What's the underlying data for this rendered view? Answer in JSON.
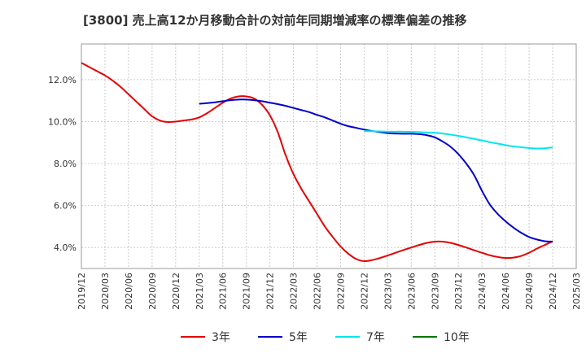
{
  "title": "[3800]  売上高12か月移動合計の対前年同期増減率の標準偏差の推移",
  "chart_data": {
    "type": "line",
    "title": "[3800]  売上高12か月移動合計の対前年同期増減率の標準偏差の推移",
    "xlabel": "",
    "ylabel": "",
    "x_ticks": [
      "2019/12",
      "2020/03",
      "2020/06",
      "2020/09",
      "2020/12",
      "2021/03",
      "2021/06",
      "2021/09",
      "2021/12",
      "2022/03",
      "2022/06",
      "2022/09",
      "2022/12",
      "2023/03",
      "2023/06",
      "2023/09",
      "2023/12",
      "2024/03",
      "2024/06",
      "2024/09",
      "2024/12",
      "2025/03"
    ],
    "y_ticks": [
      "4.0%",
      "6.0%",
      "8.0%",
      "10.0%",
      "12.0%"
    ],
    "y_tick_values": [
      4,
      6,
      8,
      10,
      12
    ],
    "ylim": [
      3,
      13.7
    ],
    "grid": true,
    "legend_position": "bottom",
    "series": [
      {
        "name": "3年",
        "color": "#e60000",
        "points": [
          [
            "2019/12",
            12.8
          ],
          [
            "2020/01",
            12.6
          ],
          [
            "2020/02",
            12.4
          ],
          [
            "2020/03",
            12.2
          ],
          [
            "2020/04",
            11.95
          ],
          [
            "2020/05",
            11.65
          ],
          [
            "2020/06",
            11.3
          ],
          [
            "2020/07",
            10.95
          ],
          [
            "2020/08",
            10.6
          ],
          [
            "2020/09",
            10.25
          ],
          [
            "2020/10",
            10.05
          ],
          [
            "2020/11",
            9.98
          ],
          [
            "2020/12",
            10.0
          ],
          [
            "2021/01",
            10.05
          ],
          [
            "2021/02",
            10.1
          ],
          [
            "2021/03",
            10.2
          ],
          [
            "2021/04",
            10.4
          ],
          [
            "2021/05",
            10.65
          ],
          [
            "2021/06",
            10.9
          ],
          [
            "2021/07",
            11.1
          ],
          [
            "2021/08",
            11.2
          ],
          [
            "2021/09",
            11.2
          ],
          [
            "2021/10",
            11.1
          ],
          [
            "2021/11",
            10.8
          ],
          [
            "2021/12",
            10.3
          ],
          [
            "2022/01",
            9.5
          ],
          [
            "2022/02",
            8.4
          ],
          [
            "2022/03",
            7.5
          ],
          [
            "2022/04",
            6.8
          ],
          [
            "2022/05",
            6.2
          ],
          [
            "2022/06",
            5.6
          ],
          [
            "2022/07",
            5.0
          ],
          [
            "2022/08",
            4.5
          ],
          [
            "2022/09",
            4.05
          ],
          [
            "2022/10",
            3.7
          ],
          [
            "2022/11",
            3.45
          ],
          [
            "2022/12",
            3.35
          ],
          [
            "2023/01",
            3.4
          ],
          [
            "2023/02",
            3.5
          ],
          [
            "2023/03",
            3.62
          ],
          [
            "2023/04",
            3.75
          ],
          [
            "2023/05",
            3.88
          ],
          [
            "2023/06",
            4.0
          ],
          [
            "2023/07",
            4.12
          ],
          [
            "2023/08",
            4.22
          ],
          [
            "2023/09",
            4.28
          ],
          [
            "2023/10",
            4.28
          ],
          [
            "2023/11",
            4.22
          ],
          [
            "2023/12",
            4.12
          ],
          [
            "2024/01",
            4.0
          ],
          [
            "2024/02",
            3.87
          ],
          [
            "2024/03",
            3.75
          ],
          [
            "2024/04",
            3.63
          ],
          [
            "2024/05",
            3.55
          ],
          [
            "2024/06",
            3.5
          ],
          [
            "2024/07",
            3.52
          ],
          [
            "2024/08",
            3.6
          ],
          [
            "2024/09",
            3.75
          ],
          [
            "2024/10",
            3.95
          ],
          [
            "2024/11",
            4.12
          ],
          [
            "2024/12",
            4.3
          ]
        ]
      },
      {
        "name": "5年",
        "color": "#0000cc",
        "points": [
          [
            "2021/03",
            10.85
          ],
          [
            "2021/04",
            10.88
          ],
          [
            "2021/05",
            10.92
          ],
          [
            "2021/06",
            10.97
          ],
          [
            "2021/07",
            11.02
          ],
          [
            "2021/08",
            11.05
          ],
          [
            "2021/09",
            11.05
          ],
          [
            "2021/10",
            11.02
          ],
          [
            "2021/11",
            10.97
          ],
          [
            "2021/12",
            10.9
          ],
          [
            "2022/01",
            10.83
          ],
          [
            "2022/02",
            10.75
          ],
          [
            "2022/03",
            10.65
          ],
          [
            "2022/04",
            10.55
          ],
          [
            "2022/05",
            10.45
          ],
          [
            "2022/06",
            10.32
          ],
          [
            "2022/07",
            10.2
          ],
          [
            "2022/08",
            10.05
          ],
          [
            "2022/09",
            9.9
          ],
          [
            "2022/10",
            9.78
          ],
          [
            "2022/11",
            9.7
          ],
          [
            "2022/12",
            9.62
          ],
          [
            "2023/01",
            9.55
          ],
          [
            "2023/02",
            9.5
          ],
          [
            "2023/03",
            9.45
          ],
          [
            "2023/04",
            9.43
          ],
          [
            "2023/05",
            9.42
          ],
          [
            "2023/06",
            9.42
          ],
          [
            "2023/07",
            9.4
          ],
          [
            "2023/08",
            9.35
          ],
          [
            "2023/09",
            9.25
          ],
          [
            "2023/10",
            9.05
          ],
          [
            "2023/11",
            8.8
          ],
          [
            "2023/12",
            8.45
          ],
          [
            "2024/01",
            8.0
          ],
          [
            "2024/02",
            7.45
          ],
          [
            "2024/03",
            6.7
          ],
          [
            "2024/04",
            6.05
          ],
          [
            "2024/05",
            5.6
          ],
          [
            "2024/06",
            5.25
          ],
          [
            "2024/07",
            4.95
          ],
          [
            "2024/08",
            4.7
          ],
          [
            "2024/09",
            4.5
          ],
          [
            "2024/10",
            4.38
          ],
          [
            "2024/11",
            4.3
          ],
          [
            "2024/12",
            4.28
          ]
        ]
      },
      {
        "name": "7年",
        "color": "#00e5ee",
        "points": [
          [
            "2022/12",
            9.55
          ],
          [
            "2023/01",
            9.54
          ],
          [
            "2023/02",
            9.53
          ],
          [
            "2023/03",
            9.52
          ],
          [
            "2023/04",
            9.52
          ],
          [
            "2023/05",
            9.52
          ],
          [
            "2023/06",
            9.51
          ],
          [
            "2023/07",
            9.5
          ],
          [
            "2023/08",
            9.48
          ],
          [
            "2023/09",
            9.47
          ],
          [
            "2023/10",
            9.43
          ],
          [
            "2023/11",
            9.38
          ],
          [
            "2023/12",
            9.32
          ],
          [
            "2024/01",
            9.25
          ],
          [
            "2024/02",
            9.18
          ],
          [
            "2024/03",
            9.1
          ],
          [
            "2024/04",
            9.02
          ],
          [
            "2024/05",
            8.95
          ],
          [
            "2024/06",
            8.88
          ],
          [
            "2024/07",
            8.82
          ],
          [
            "2024/08",
            8.78
          ],
          [
            "2024/09",
            8.74
          ],
          [
            "2024/10",
            8.72
          ],
          [
            "2024/11",
            8.73
          ],
          [
            "2024/12",
            8.77
          ]
        ]
      },
      {
        "name": "10年",
        "color": "#007700",
        "points": []
      }
    ]
  }
}
